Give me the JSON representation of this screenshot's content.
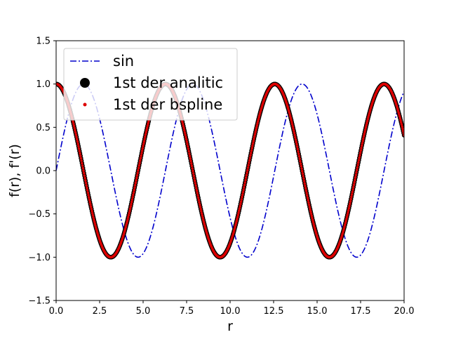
{
  "chart_data": {
    "type": "line",
    "title": "",
    "xlabel": "r",
    "ylabel": "f(r), f'(r)",
    "xlim": [
      0,
      20
    ],
    "ylim": [
      -1.5,
      1.5
    ],
    "xticks": [
      0,
      2.5,
      5,
      7.5,
      10,
      12.5,
      15,
      17.5,
      20
    ],
    "xtick_labels": [
      "0.0",
      "2.5",
      "5.0",
      "7.5",
      "10.0",
      "12.5",
      "15.0",
      "17.5",
      "20.0"
    ],
    "yticks": [
      -1.5,
      -1,
      -0.5,
      0,
      0.5,
      1,
      1.5
    ],
    "ytick_labels": [
      "−1.5",
      "−1.0",
      "−0.5",
      "0.0",
      "0.5",
      "1.0",
      "1.5"
    ],
    "grid": false,
    "legend_position": "upper-left",
    "series": [
      {
        "name": "sin",
        "function": "sin(r)",
        "style": "dash-dot",
        "color": "#0000cc",
        "x_range": [
          0,
          20
        ]
      },
      {
        "name": "1st der analitic",
        "function": "cos(r)",
        "style": "markers-large",
        "color": "#000000",
        "x_range": [
          0,
          20
        ]
      },
      {
        "name": "1st der bspline",
        "function": "cos(r)",
        "style": "markers-small",
        "color": "#dd0000",
        "x_range": [
          0,
          20
        ]
      }
    ]
  }
}
